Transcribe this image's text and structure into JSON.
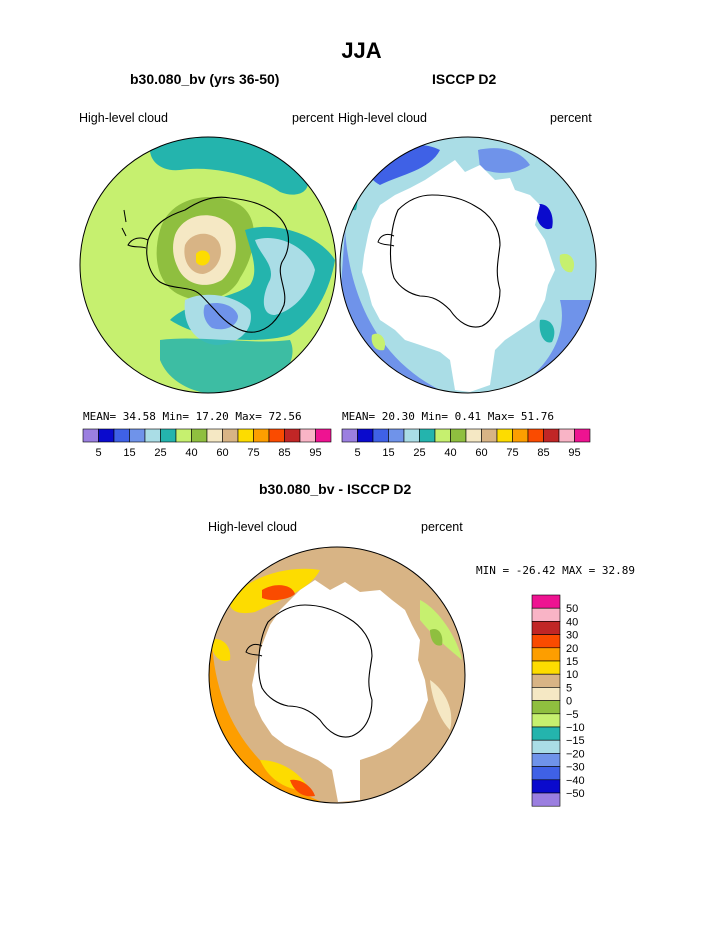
{
  "page": {
    "title": "JJA",
    "diff_title": "b30.080_bv - ISCCP D2"
  },
  "colors": {
    "level_fill": [
      "#9b7fe0",
      "#0a0acd",
      "#3f61e6",
      "#6f93ea",
      "#aadde6",
      "#24b4ad",
      "#c6f06f",
      "#8fbf3f",
      "#f5e8c4",
      "#d8b485",
      "#fddc00",
      "#fd9e00",
      "#fa4b00",
      "#c12626",
      "#f9b4c6",
      "#ee1391"
    ],
    "diff_fill": [
      "#9b7fe0",
      "#0a0acd",
      "#3f61e6",
      "#6f93ea",
      "#aadde6",
      "#24b4ad",
      "#c6f06f",
      "#8fbf3f",
      "#f5e8c4",
      "#d8b485",
      "#fddc00",
      "#fd9e00",
      "#fa4b00",
      "#c12626",
      "#f9b4c6",
      "#ee1391"
    ]
  },
  "chart_data": [
    {
      "type": "heatmap",
      "projection": "south-polar-stereographic",
      "title": "b30.080_bv (yrs 36-50)",
      "left_label": "High-level cloud",
      "units": "percent",
      "stats": {
        "mean_label": "MEAN=",
        "mean": "34.58",
        "min_label": "Min=",
        "min": "17.20",
        "max_label": "Max=",
        "max": "72.56"
      },
      "colorbar_ticks": [
        "5",
        "15",
        "25",
        "40",
        "60",
        "75",
        "85",
        "95"
      ]
    },
    {
      "type": "heatmap",
      "projection": "south-polar-stereographic",
      "title": "ISCCP D2",
      "left_label": "High-level cloud",
      "units": "percent",
      "stats": {
        "mean_label": "MEAN=",
        "mean": "20.30",
        "min_label": "Min=",
        "min": "0.41",
        "max_label": "Max=",
        "max": "51.76"
      },
      "colorbar_ticks": [
        "5",
        "15",
        "25",
        "40",
        "60",
        "75",
        "85",
        "95"
      ]
    },
    {
      "type": "heatmap",
      "projection": "south-polar-stereographic",
      "title": "b30.080_bv - ISCCP D2",
      "left_label": "High-level cloud",
      "units": "percent",
      "stats": {
        "min_label": "MIN =",
        "min": "-26.42",
        "max_label": "MAX =",
        "max": "32.89"
      },
      "colorbar_ticks": [
        "50",
        "40",
        "30",
        "20",
        "15",
        "10",
        "5",
        "0",
        "−5",
        "−10",
        "−15",
        "−20",
        "−30",
        "−40",
        "−50"
      ]
    }
  ]
}
